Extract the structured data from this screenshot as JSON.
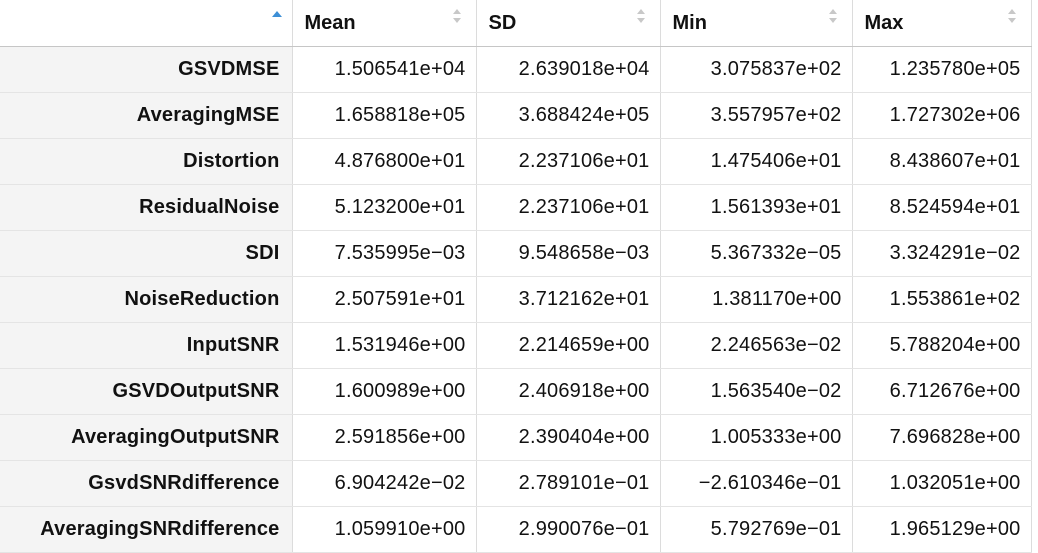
{
  "table": {
    "columns": [
      "",
      "Mean",
      "SD",
      "Min",
      "Max"
    ],
    "sorted_column": 0,
    "sort_indicator_color": "#3d8fd6",
    "rows": [
      [
        "GSVDMSE",
        "1.506541e+04",
        "2.639018e+04",
        "3.075837e+02",
        "1.235780e+05"
      ],
      [
        "AveragingMSE",
        "1.658818e+05",
        "3.688424e+05",
        "3.557957e+02",
        "1.727302e+06"
      ],
      [
        "Distortion",
        "4.876800e+01",
        "2.237106e+01",
        "1.475406e+01",
        "8.438607e+01"
      ],
      [
        "ResidualNoise",
        "5.123200e+01",
        "2.237106e+01",
        "1.561393e+01",
        "8.524594e+01"
      ],
      [
        "SDI",
        "7.535995e−03",
        "9.548658e−03",
        "5.367332e−05",
        "3.324291e−02"
      ],
      [
        "NoiseReduction",
        "2.507591e+01",
        "3.712162e+01",
        "1.381170e+00",
        "1.553861e+02"
      ],
      [
        "InputSNR",
        "1.531946e+00",
        "2.214659e+00",
        "2.246563e−02",
        "5.788204e+00"
      ],
      [
        "GSVDOutputSNR",
        "1.600989e+00",
        "2.406918e+00",
        "1.563540e−02",
        "6.712676e+00"
      ],
      [
        "AveragingOutputSNR",
        "2.591856e+00",
        "2.390404e+00",
        "1.005333e+00",
        "7.696828e+00"
      ],
      [
        "GsvdSNRdifference",
        "6.904242e−02",
        "2.789101e−01",
        "−2.610346e−01",
        "1.032051e+00"
      ],
      [
        "AveragingSNRdifference",
        "1.059910e+00",
        "2.990076e−01",
        "5.792769e−01",
        "1.965129e+00"
      ]
    ]
  }
}
